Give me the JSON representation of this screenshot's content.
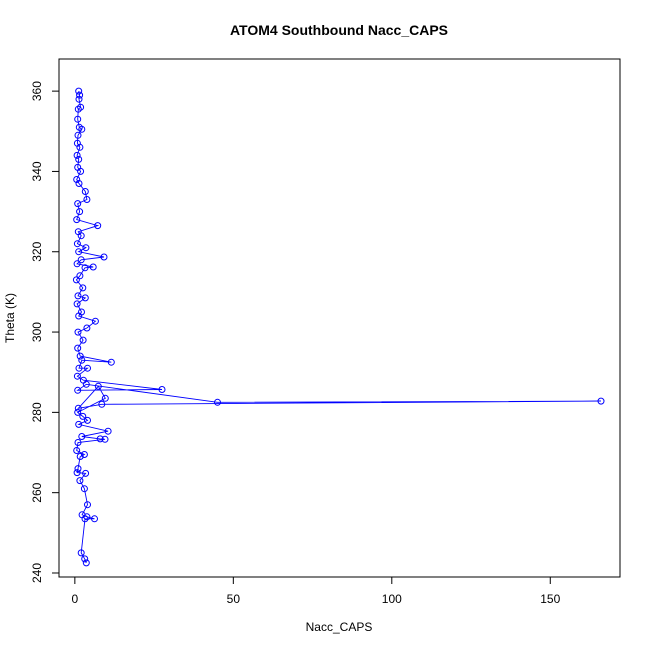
{
  "chart_data": {
    "type": "line",
    "title": "ATOM4 Southbound Nacc_CAPS",
    "xlabel": "Nacc_CAPS",
    "ylabel": "Theta (K)",
    "xlim": [
      -5,
      172
    ],
    "ylim": [
      239,
      368
    ],
    "xticks": [
      0,
      50,
      100,
      150
    ],
    "yticks": [
      240,
      260,
      280,
      300,
      320,
      340,
      360
    ],
    "grid": false,
    "legend": "none",
    "series_color": "#0000ff",
    "marker": "open-circle",
    "series": [
      {
        "points": [
          [
            1.2,
            360
          ],
          [
            1.5,
            359
          ],
          [
            1.3,
            358
          ],
          [
            1.8,
            356
          ],
          [
            1.1,
            355.5
          ],
          [
            0.9,
            353
          ],
          [
            1.4,
            351
          ],
          [
            2.2,
            350.5
          ],
          [
            1.0,
            349
          ],
          [
            0.8,
            347
          ],
          [
            1.6,
            346
          ],
          [
            0.7,
            344
          ],
          [
            1.2,
            343
          ],
          [
            0.9,
            341
          ],
          [
            1.8,
            340
          ],
          [
            0.6,
            338
          ],
          [
            1.3,
            337
          ],
          [
            3.3,
            335
          ],
          [
            3.8,
            333
          ],
          [
            0.9,
            332
          ],
          [
            1.5,
            330
          ],
          [
            0.6,
            328
          ],
          [
            7.2,
            326.5
          ],
          [
            1.1,
            325
          ],
          [
            2.0,
            324
          ],
          [
            0.8,
            322
          ],
          [
            3.5,
            321
          ],
          [
            1.2,
            320
          ],
          [
            9.2,
            318.7
          ],
          [
            2.0,
            318
          ],
          [
            0.7,
            317
          ],
          [
            5.8,
            316.2
          ],
          [
            3.2,
            316
          ],
          [
            1.6,
            314
          ],
          [
            0.5,
            313
          ],
          [
            2.5,
            311
          ],
          [
            1.0,
            309
          ],
          [
            3.3,
            308.5
          ],
          [
            0.7,
            307
          ],
          [
            2.1,
            305
          ],
          [
            1.2,
            304
          ],
          [
            6.5,
            302.7
          ],
          [
            3.8,
            301
          ],
          [
            1.0,
            300
          ],
          [
            2.6,
            298
          ],
          [
            0.9,
            296
          ],
          [
            1.7,
            294
          ],
          [
            11.5,
            292.5
          ],
          [
            2.2,
            293
          ],
          [
            1.3,
            291
          ],
          [
            4.0,
            291
          ],
          [
            0.8,
            289
          ],
          [
            2.7,
            288
          ],
          [
            27.5,
            285.7
          ],
          [
            0.9,
            285.5
          ],
          [
            3.6,
            287
          ],
          [
            45.0,
            282.5
          ],
          [
            166.0,
            282.8
          ],
          [
            8.5,
            282
          ],
          [
            1.1,
            281
          ],
          [
            7.4,
            286.5
          ],
          [
            9.6,
            283.5
          ],
          [
            0.9,
            280
          ],
          [
            2.5,
            279
          ],
          [
            4.0,
            278
          ],
          [
            1.2,
            277
          ],
          [
            10.5,
            275.3
          ],
          [
            2.2,
            274
          ],
          [
            8.0,
            273.4
          ],
          [
            9.5,
            273.3
          ],
          [
            1.0,
            272.5
          ],
          [
            0.6,
            270.5
          ],
          [
            3.0,
            269.5
          ],
          [
            1.7,
            269
          ],
          [
            1.0,
            266
          ],
          [
            0.7,
            265
          ],
          [
            3.4,
            264.8
          ],
          [
            1.6,
            263
          ],
          [
            3.0,
            261
          ],
          [
            4.0,
            257
          ],
          [
            2.3,
            254.5
          ],
          [
            3.8,
            254
          ],
          [
            6.2,
            253.5
          ],
          [
            3.2,
            253.5
          ],
          [
            2.0,
            245
          ],
          [
            3.1,
            243.5
          ],
          [
            3.6,
            242.5
          ]
        ]
      }
    ]
  }
}
